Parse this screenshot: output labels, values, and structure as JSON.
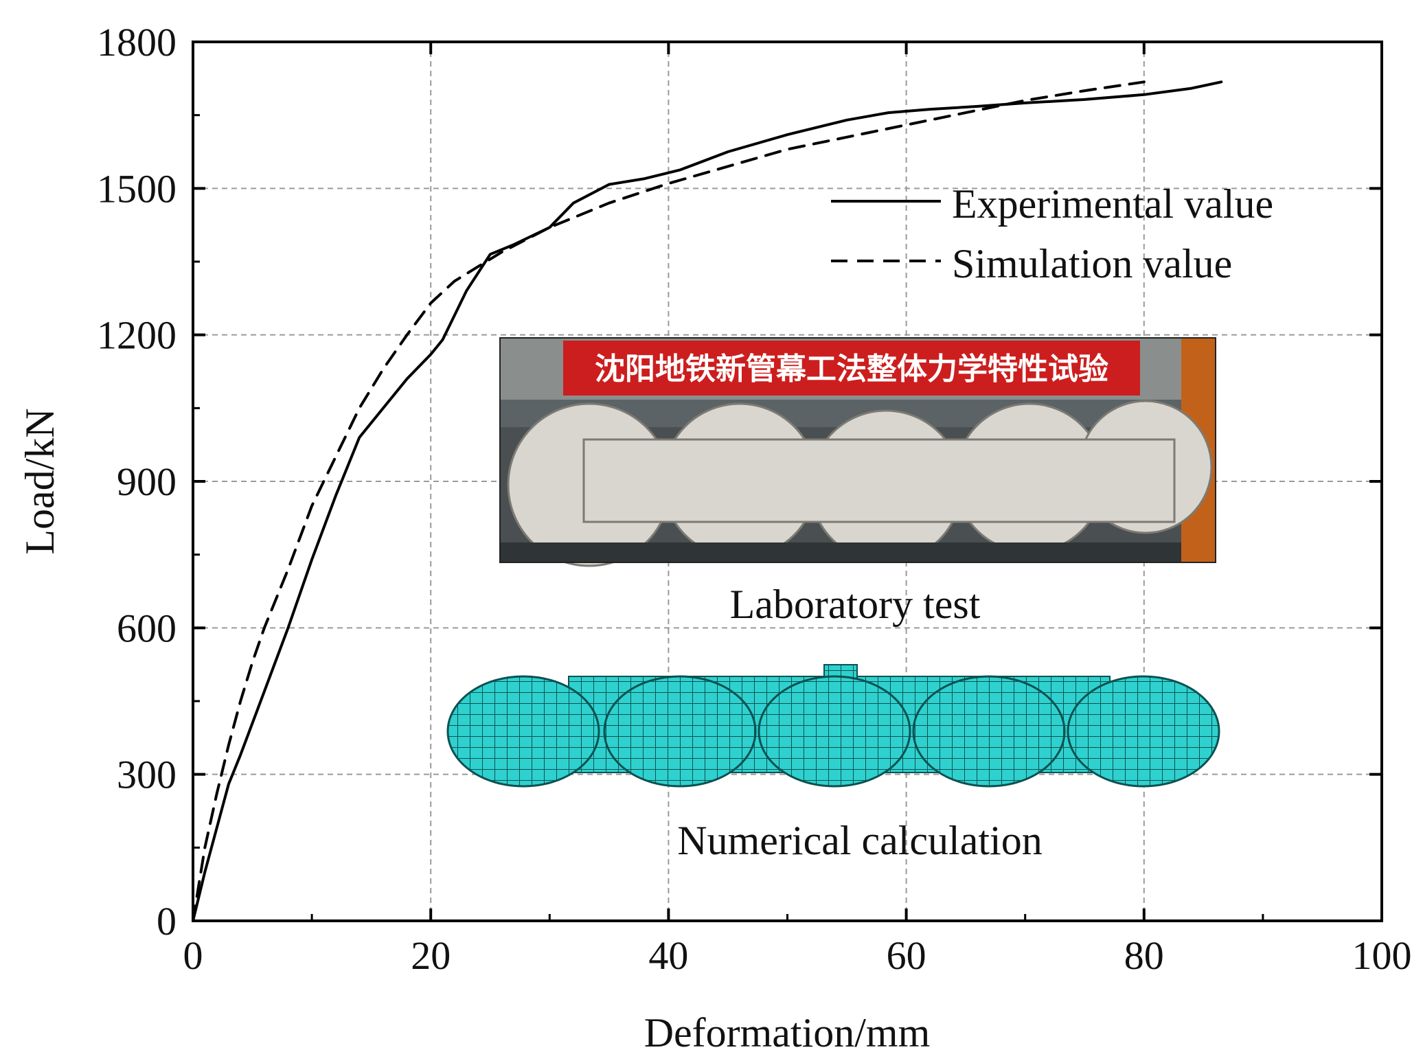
{
  "chart_data": {
    "type": "line",
    "title": "",
    "xlabel": "Deformation/mm",
    "ylabel": "Load/kN",
    "xlim": [
      0,
      100
    ],
    "ylim": [
      0,
      1800
    ],
    "xticks": [
      0,
      20,
      40,
      60,
      80,
      100
    ],
    "yticks": [
      0,
      300,
      600,
      900,
      1200,
      1500,
      1800
    ],
    "grid": true,
    "legend_position": "top-right",
    "series": [
      {
        "name": "Experimental value",
        "style": "solid",
        "x": [
          0,
          1,
          2,
          3,
          4,
          6,
          8,
          10,
          12,
          14,
          16,
          18,
          20,
          21,
          22,
          23,
          25,
          27,
          30,
          32,
          35,
          38,
          41,
          45,
          50,
          55,
          58.5,
          62,
          66,
          70,
          75,
          80,
          84,
          86.5
        ],
        "y": [
          0,
          100,
          190,
          280,
          340,
          470,
          600,
          740,
          870,
          990,
          1050,
          1110,
          1160,
          1190,
          1240,
          1290,
          1365,
          1385,
          1420,
          1470,
          1508,
          1520,
          1538,
          1575,
          1610,
          1640,
          1655,
          1662,
          1668,
          1675,
          1682,
          1692,
          1705,
          1718
        ]
      },
      {
        "name": "Simulation value",
        "style": "dashed",
        "x": [
          0,
          1,
          2,
          3,
          4,
          5,
          6,
          8,
          10,
          12,
          14,
          16,
          18,
          20,
          22,
          24,
          26,
          28,
          30,
          32,
          35,
          40,
          45,
          50,
          55,
          60,
          65,
          70,
          75,
          80
        ],
        "y": [
          0,
          150,
          260,
          360,
          450,
          530,
          600,
          720,
          850,
          950,
          1050,
          1130,
          1200,
          1265,
          1310,
          1340,
          1370,
          1395,
          1420,
          1440,
          1470,
          1510,
          1545,
          1580,
          1605,
          1630,
          1655,
          1680,
          1700,
          1718
        ]
      }
    ],
    "annotations": [
      {
        "label": "Laboratory test",
        "type": "photo-inset"
      },
      {
        "label": "Numerical calculation",
        "type": "mesh-inset"
      }
    ],
    "banner_text": "沈阳地铁新管幕工法整体力学特性试验"
  },
  "colors": {
    "line": "#000000",
    "grid": "#9a9a9a",
    "banner_red": "#cc1e1e",
    "mesh_fill": "#2fd1cf",
    "mesh_line": "#0b5250"
  }
}
